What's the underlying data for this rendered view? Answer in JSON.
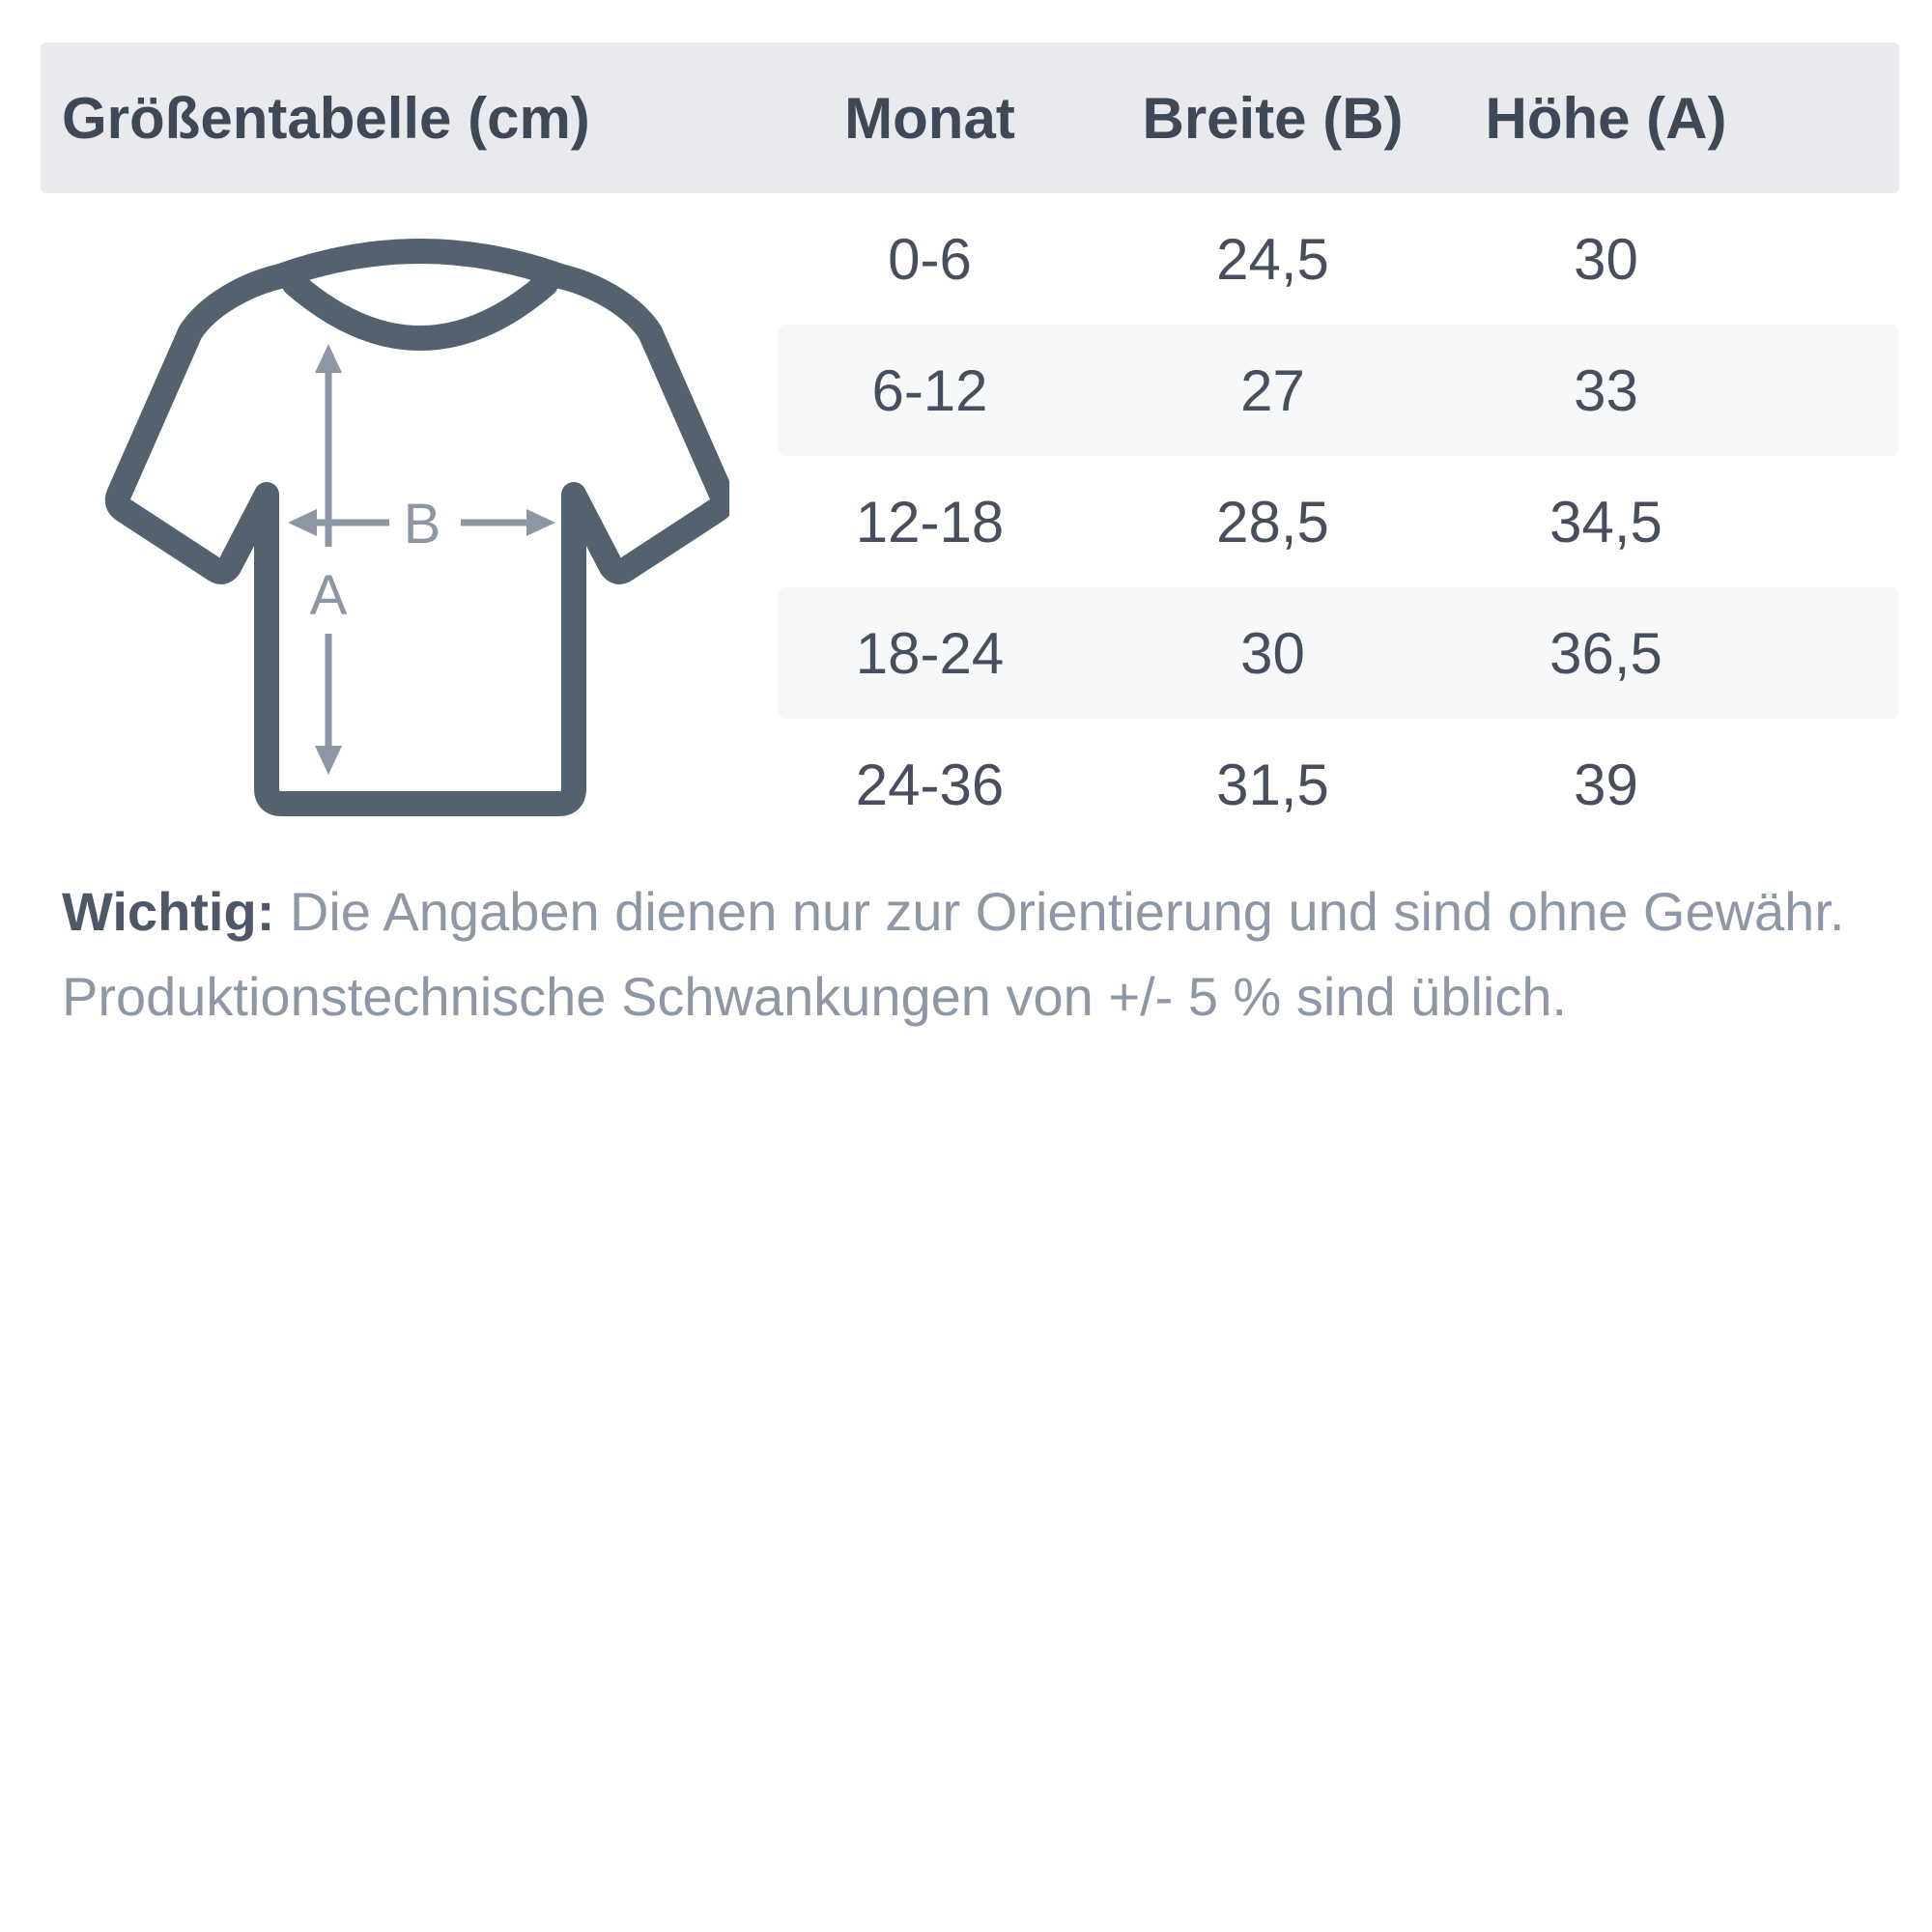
{
  "table": {
    "title": "Größentabelle (cm)",
    "columns": [
      "Monat",
      "Breite (B)",
      "Höhe (A)"
    ],
    "rows": [
      {
        "monat": "0-6",
        "breite": "24,5",
        "hoehe": "30",
        "striped": false
      },
      {
        "monat": "6-12",
        "breite": "27",
        "hoehe": "33",
        "striped": true
      },
      {
        "monat": "12-18",
        "breite": "28,5",
        "hoehe": "34,5",
        "striped": false
      },
      {
        "monat": "18-24",
        "breite": "30",
        "hoehe": "36,5",
        "striped": true
      },
      {
        "monat": "24-36",
        "breite": "31,5",
        "hoehe": "39",
        "striped": false
      }
    ]
  },
  "diagram": {
    "height_label": "A",
    "width_label": "B"
  },
  "note": {
    "label": "Wichtig:",
    "line1": "Die Angaben dienen nur zur Orientierung und sind ohne Gewähr.",
    "line2": "Produktionstechnische Schwankungen von +/- 5 % sind üblich."
  },
  "colors": {
    "header_bg": "#e8eaee",
    "stripe_bg": "#f6f8f9",
    "heading_text": "#3f4857",
    "cell_text": "#474f5f",
    "shirt_outline": "#54616e",
    "arrow_gray": "#8d96a4",
    "note_text": "#8e97a6"
  }
}
